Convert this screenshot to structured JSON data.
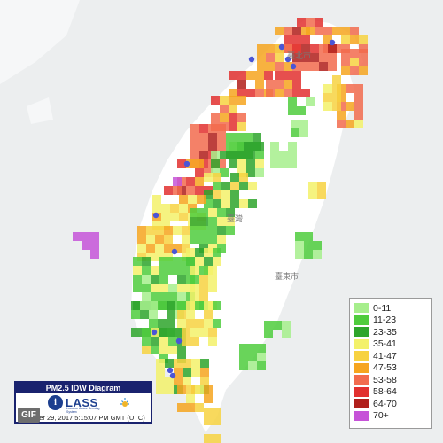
{
  "title_box": {
    "title": "PM2.5 IDW Diagram",
    "logo": "LASS",
    "logo_subtitle": "Location Aware Sensing System",
    "timestamp": "October 29, 2017 5:15:07 PM GMT (UTC)"
  },
  "gif_badge": "GIF",
  "legend": {
    "items": [
      {
        "label": "0-11",
        "color": "#a6ee8c"
      },
      {
        "label": "11-23",
        "color": "#4fcc3d"
      },
      {
        "label": "23-35",
        "color": "#2ea52b"
      },
      {
        "label": "35-41",
        "color": "#f3f16a"
      },
      {
        "label": "41-47",
        "color": "#f7d241"
      },
      {
        "label": "47-53",
        "color": "#f6a51f"
      },
      {
        "label": "53-58",
        "color": "#f26b4e"
      },
      {
        "label": "58-64",
        "color": "#e2302f"
      },
      {
        "label": "64-70",
        "color": "#b01f1b"
      },
      {
        "label": "70+",
        "color": "#c653d8"
      }
    ]
  },
  "place_labels": {
    "taipei": "臺北市",
    "taiwan": "臺灣",
    "taitung": "臺東市"
  },
  "colors": {
    "sea": "#eceeef",
    "land": "#ffffff",
    "station": "#4b55d6"
  }
}
